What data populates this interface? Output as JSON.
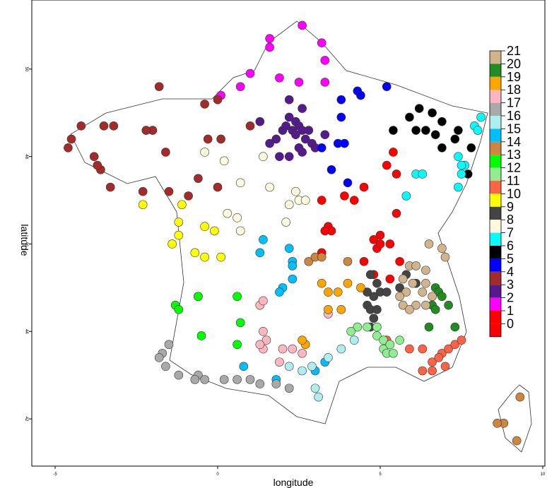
{
  "chart_data": {
    "type": "scatter",
    "title": "",
    "xlabel": "longitude",
    "ylabel": "latitude",
    "xlim": [
      -5.5,
      10.0
    ],
    "ylim": [
      41.0,
      51.5
    ],
    "x_ticks": [
      "-5",
      "0",
      "5",
      "10"
    ],
    "y_ticks": [
      "42",
      "44",
      "46",
      "48",
      "50"
    ],
    "grid": false,
    "legend_position": "right",
    "legend": [
      {
        "label": "21",
        "color": "#d2b48c"
      },
      {
        "label": "20",
        "color": "#228b22"
      },
      {
        "label": "19",
        "color": "#ffa500"
      },
      {
        "label": "18",
        "color": "#ffb6c1"
      },
      {
        "label": "17",
        "color": "#a9a9a9"
      },
      {
        "label": "16",
        "color": "#afeeee"
      },
      {
        "label": "15",
        "color": "#00bfff"
      },
      {
        "label": "14",
        "color": "#cd853f"
      },
      {
        "label": "13",
        "color": "#00ff00"
      },
      {
        "label": "12",
        "color": "#90ee90"
      },
      {
        "label": "11",
        "color": "#ff6347"
      },
      {
        "label": "10",
        "color": "#ffff00"
      },
      {
        "label": "9",
        "color": "#444444"
      },
      {
        "label": "8",
        "color": "#fffadd"
      },
      {
        "label": "7",
        "color": "#00ffff"
      },
      {
        "label": "6",
        "color": "#000000"
      },
      {
        "label": "5",
        "color": "#0000ff"
      },
      {
        "label": "4",
        "color": "#a52a2a"
      },
      {
        "label": "3",
        "color": "#551a8b"
      },
      {
        "label": "2",
        "color": "#ff00ff"
      },
      {
        "label": "1",
        "color": "#ff0000"
      },
      {
        "label": "0",
        "color": "#ff0000"
      }
    ],
    "series": [
      {
        "cluster": 0,
        "color": "#ff0000",
        "points": [
          [
            3.2,
            47.0
          ],
          [
            3.4,
            46.4
          ],
          [
            3.2,
            45.8
          ],
          [
            5.0,
            46.2
          ],
          [
            4.9,
            45.9
          ],
          [
            5.3,
            46.0
          ],
          [
            4.5,
            45.6
          ],
          [
            4.8,
            45.3
          ],
          [
            5.2,
            47.8
          ],
          [
            5.5,
            46.7
          ],
          [
            4.5,
            47.3
          ],
          [
            3.5,
            46.3
          ],
          [
            3.3,
            46.3
          ],
          [
            3.9,
            47.1
          ],
          [
            4.2,
            47.0
          ],
          [
            5.4,
            48.1
          ],
          [
            5.5,
            47.6
          ],
          [
            5.3,
            45.2
          ],
          [
            5.6,
            45.6
          ],
          [
            4.8,
            46.1
          ],
          [
            5.0,
            46.0
          ]
        ]
      },
      {
        "cluster": 1,
        "color": "#ff00ff",
        "points": [
          [
            2.6,
            51.0
          ],
          [
            1.6,
            50.7
          ],
          [
            1.6,
            50.5
          ],
          [
            3.2,
            50.6
          ],
          [
            3.3,
            50.2
          ],
          [
            1.0,
            49.9
          ],
          [
            0.7,
            49.6
          ],
          [
            1.9,
            49.8
          ],
          [
            2.5,
            49.7
          ],
          [
            3.3,
            49.7
          ],
          [
            0.1,
            49.4
          ]
        ]
      },
      {
        "cluster": 2,
        "color": "#551a8b",
        "points": [
          [
            2.2,
            49.3
          ],
          [
            2.6,
            49.1
          ],
          [
            1.3,
            48.8
          ],
          [
            2.2,
            48.9
          ],
          [
            2.4,
            48.8
          ],
          [
            2.5,
            48.7
          ],
          [
            2.0,
            48.6
          ],
          [
            2.3,
            48.6
          ],
          [
            2.4,
            48.5
          ],
          [
            2.6,
            48.6
          ],
          [
            2.8,
            48.6
          ],
          [
            1.6,
            48.3
          ],
          [
            1.8,
            48.4
          ],
          [
            2.7,
            48.4
          ],
          [
            2.9,
            48.3
          ],
          [
            2.6,
            48.1
          ],
          [
            3.3,
            48.5
          ],
          [
            1.9,
            48.0
          ],
          [
            2.2,
            48.0
          ],
          [
            2.5,
            48.2
          ],
          [
            2.1,
            48.7
          ],
          [
            3.0,
            48.2
          ]
        ]
      },
      {
        "cluster": 3,
        "color": "#a52a2a",
        "points": [
          [
            -1.8,
            49.6
          ],
          [
            -0.4,
            49.2
          ],
          [
            0.0,
            49.3
          ],
          [
            -4.2,
            48.7
          ],
          [
            -3.5,
            48.7
          ],
          [
            -3.2,
            48.7
          ],
          [
            -4.5,
            48.4
          ],
          [
            -4.6,
            48.2
          ],
          [
            -2.0,
            48.6
          ],
          [
            -2.2,
            48.6
          ],
          [
            -3.8,
            48.0
          ],
          [
            -3.6,
            47.7
          ],
          [
            -3.7,
            47.8
          ],
          [
            -1.6,
            48.1
          ],
          [
            -0.3,
            48.4
          ],
          [
            0.1,
            48.4
          ],
          [
            -3.3,
            47.3
          ],
          [
            -2.3,
            47.2
          ],
          [
            -1.5,
            47.2
          ],
          [
            -0.6,
            47.5
          ],
          [
            -0.9,
            47.1
          ],
          [
            0.0,
            47.3
          ],
          [
            1.0,
            48.7
          ]
        ]
      },
      {
        "cluster": 4,
        "color": "#0000ff",
        "points": [
          [
            4.3,
            49.5
          ],
          [
            4.4,
            49.4
          ],
          [
            5.2,
            49.6
          ],
          [
            3.8,
            49.3
          ],
          [
            3.8,
            48.9
          ],
          [
            3.7,
            48.3
          ],
          [
            3.2,
            48.2
          ],
          [
            3.9,
            48.3
          ],
          [
            3.5,
            47.7
          ],
          [
            4.0,
            47.4
          ]
        ]
      },
      {
        "cluster": 5,
        "color": "#000000",
        "points": [
          [
            5.9,
            48.9
          ],
          [
            6.2,
            49.1
          ],
          [
            6.6,
            49.0
          ],
          [
            6.9,
            48.8
          ],
          [
            6.4,
            48.6
          ],
          [
            6.1,
            48.6
          ],
          [
            6.7,
            48.5
          ],
          [
            6.9,
            48.2
          ],
          [
            7.4,
            48.6
          ],
          [
            7.3,
            48.4
          ],
          [
            7.8,
            48.2
          ],
          [
            7.7,
            47.6
          ],
          [
            5.4,
            48.6
          ]
        ]
      },
      {
        "cluster": 6,
        "color": "#00ffff",
        "points": [
          [
            8.1,
            48.9
          ],
          [
            7.9,
            48.7
          ],
          [
            8.0,
            48.6
          ],
          [
            7.4,
            48.0
          ],
          [
            7.6,
            47.8
          ],
          [
            7.5,
            47.6
          ],
          [
            7.4,
            47.3
          ],
          [
            6.1,
            47.6
          ],
          [
            6.3,
            47.6
          ],
          [
            5.8,
            47.1
          ],
          [
            7.5,
            47.8
          ]
        ]
      },
      {
        "cluster": 7,
        "color": "#fffadd",
        "points": [
          [
            -0.4,
            48.1
          ],
          [
            0.2,
            47.9
          ],
          [
            1.4,
            48.0
          ],
          [
            0.7,
            47.4
          ],
          [
            1.6,
            47.3
          ],
          [
            2.4,
            47.2
          ],
          [
            2.5,
            47.0
          ],
          [
            2.7,
            47.0
          ],
          [
            0.3,
            46.7
          ],
          [
            0.6,
            46.6
          ],
          [
            2.2,
            46.9
          ],
          [
            0.7,
            46.3
          ],
          [
            2.1,
            46.5
          ]
        ]
      },
      {
        "cluster": 8,
        "color": "#444444",
        "points": [
          [
            4.7,
            45.3
          ],
          [
            4.9,
            45.1
          ],
          [
            5.0,
            44.9
          ],
          [
            4.6,
            44.9
          ],
          [
            4.8,
            44.8
          ],
          [
            5.2,
            44.9
          ],
          [
            4.6,
            44.6
          ],
          [
            4.7,
            44.5
          ],
          [
            4.9,
            44.5
          ],
          [
            4.8,
            44.3
          ],
          [
            4.7,
            44.1
          ],
          [
            6.1,
            45.1
          ],
          [
            5.8,
            45.3
          ],
          [
            5.6,
            45.0
          ]
        ]
      },
      {
        "cluster": 9,
        "color": "#ffff00",
        "points": [
          [
            -2.3,
            46.9
          ],
          [
            -1.1,
            46.9
          ],
          [
            -1.2,
            46.5
          ],
          [
            -0.4,
            46.4
          ],
          [
            -0.1,
            46.3
          ],
          [
            -1.2,
            46.2
          ],
          [
            -1.4,
            46.0
          ],
          [
            -0.7,
            45.8
          ],
          [
            -0.4,
            45.7
          ],
          [
            0.1,
            45.7
          ]
        ]
      },
      {
        "cluster": 10,
        "color": "#ff6347",
        "points": [
          [
            6.3,
            43.6
          ],
          [
            6.9,
            43.5
          ],
          [
            7.1,
            43.6
          ],
          [
            7.3,
            43.7
          ],
          [
            7.5,
            43.8
          ],
          [
            6.6,
            43.3
          ],
          [
            6.8,
            43.4
          ],
          [
            6.3,
            43.1
          ],
          [
            6.6,
            43.1
          ],
          [
            7.0,
            43.2
          ],
          [
            5.2,
            43.8
          ],
          [
            5.9,
            43.6
          ]
        ]
      },
      {
        "cluster": 11,
        "color": "#90ee90",
        "points": [
          [
            4.3,
            44.1
          ],
          [
            4.6,
            44.1
          ],
          [
            4.9,
            44.1
          ],
          [
            4.9,
            43.9
          ],
          [
            5.1,
            43.8
          ],
          [
            5.6,
            43.8
          ],
          [
            5.1,
            43.6
          ],
          [
            5.3,
            43.7
          ],
          [
            5.2,
            43.5
          ],
          [
            5.4,
            43.5
          ],
          [
            4.1,
            44.0
          ]
        ]
      },
      {
        "cluster": 12,
        "color": "#00ff00",
        "points": [
          [
            -1.3,
            44.6
          ],
          [
            -1.2,
            44.5
          ],
          [
            -0.6,
            44.8
          ],
          [
            -0.6,
            44.8
          ],
          [
            0.6,
            44.8
          ],
          [
            0.7,
            44.2
          ],
          [
            -0.5,
            43.9
          ],
          [
            0.6,
            43.7
          ]
        ]
      },
      {
        "cluster": 13,
        "color": "#cd853f",
        "points": [
          [
            9.3,
            42.5
          ],
          [
            8.8,
            41.9
          ],
          [
            8.6,
            41.9
          ],
          [
            9.2,
            41.5
          ],
          [
            2.8,
            45.6
          ],
          [
            3.0,
            45.7
          ],
          [
            3.2,
            45.7
          ],
          [
            4.0,
            45.6
          ]
        ]
      },
      {
        "cluster": 14,
        "color": "#00bfff",
        "points": [
          [
            1.4,
            46.1
          ],
          [
            1.3,
            45.8
          ],
          [
            2.2,
            45.9
          ],
          [
            2.3,
            45.6
          ],
          [
            2.3,
            45.5
          ],
          [
            2.3,
            45.2
          ],
          [
            2.0,
            45.0
          ],
          [
            1.9,
            44.9
          ],
          [
            0.8,
            43.2
          ],
          [
            1.8,
            42.9
          ],
          [
            3.3,
            43.3
          ],
          [
            3.0,
            43.1
          ]
        ]
      },
      {
        "cluster": 15,
        "color": "#afeeee",
        "points": [
          [
            2.2,
            43.2
          ],
          [
            2.6,
            43.1
          ],
          [
            2.9,
            43.2
          ],
          [
            3.4,
            43.4
          ],
          [
            3.8,
            43.6
          ],
          [
            4.2,
            43.8
          ],
          [
            3.0,
            42.7
          ],
          [
            3.1,
            42.5
          ]
        ]
      },
      {
        "cluster": 16,
        "color": "#a9a9a9",
        "points": [
          [
            -1.5,
            43.7
          ],
          [
            -1.7,
            43.5
          ],
          [
            -1.8,
            43.4
          ],
          [
            -1.6,
            43.2
          ],
          [
            -1.2,
            43.0
          ],
          [
            -0.6,
            43.0
          ],
          [
            -0.4,
            42.9
          ],
          [
            0.2,
            42.9
          ],
          [
            0.6,
            42.9
          ],
          [
            1.0,
            42.9
          ],
          [
            1.3,
            42.8
          ],
          [
            1.8,
            42.8
          ],
          [
            2.2,
            42.7
          ],
          [
            -0.7,
            42.9
          ]
        ]
      },
      {
        "cluster": 17,
        "color": "#ffb6c1",
        "points": [
          [
            1.3,
            44.6
          ],
          [
            1.4,
            44.7
          ],
          [
            1.4,
            44.0
          ],
          [
            1.5,
            43.8
          ],
          [
            1.4,
            43.6
          ],
          [
            1.3,
            43.7
          ],
          [
            2.0,
            43.6
          ],
          [
            2.3,
            43.6
          ],
          [
            1.9,
            43.3
          ],
          [
            2.6,
            43.5
          ],
          [
            3.4,
            44.4
          ]
        ]
      },
      {
        "cluster": 18,
        "color": "#ffa500",
        "points": [
          [
            3.2,
            45.1
          ],
          [
            3.4,
            44.9
          ],
          [
            3.7,
            44.9
          ],
          [
            4.0,
            45.1
          ],
          [
            3.4,
            44.5
          ],
          [
            3.8,
            44.5
          ],
          [
            4.4,
            45.0
          ],
          [
            2.7,
            43.7
          ],
          [
            2.6,
            43.8
          ]
        ]
      },
      {
        "cluster": 19,
        "color": "#228b22",
        "points": [
          [
            6.7,
            45.0
          ],
          [
            6.8,
            44.9
          ],
          [
            6.9,
            44.8
          ],
          [
            7.1,
            44.6
          ],
          [
            6.6,
            44.6
          ],
          [
            6.7,
            44.5
          ],
          [
            6.5,
            44.1
          ],
          [
            7.3,
            44.1
          ]
        ]
      },
      {
        "cluster": 21,
        "color": "#d2b48c",
        "points": [
          [
            6.5,
            46.0
          ],
          [
            6.9,
            45.9
          ],
          [
            7.0,
            45.7
          ],
          [
            5.9,
            45.5
          ],
          [
            6.1,
            45.5
          ],
          [
            6.4,
            45.4
          ],
          [
            5.7,
            45.2
          ],
          [
            6.0,
            45.1
          ],
          [
            6.4,
            45.1
          ],
          [
            5.8,
            44.9
          ],
          [
            6.3,
            44.9
          ],
          [
            5.6,
            44.8
          ],
          [
            5.7,
            44.6
          ],
          [
            6.1,
            44.6
          ],
          [
            6.4,
            44.6
          ],
          [
            6.6,
            44.8
          ],
          [
            5.9,
            44.5
          ]
        ]
      }
    ]
  }
}
